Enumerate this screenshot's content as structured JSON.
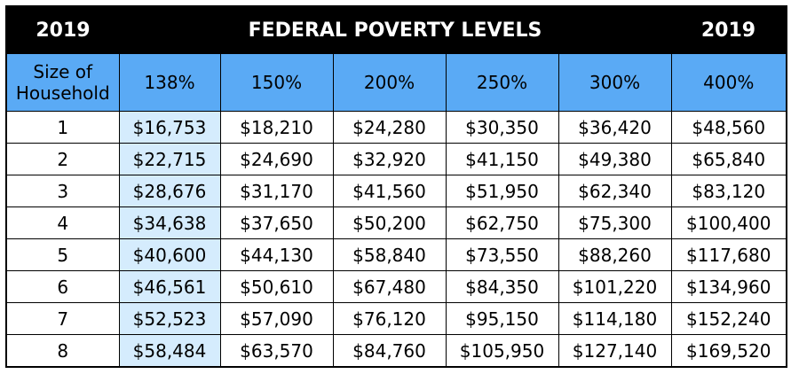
{
  "title_bar": {
    "left_year": "2019",
    "title": "FEDERAL POVERTY LEVELS",
    "right_year": "2019"
  },
  "table": {
    "headers": [
      "Size of Household",
      "138%",
      "150%",
      "200%",
      "250%",
      "300%",
      "400%"
    ],
    "rows": [
      [
        "1",
        "$16,753",
        "$18,210",
        "$24,280",
        "$30,350",
        "$36,420",
        "$48,560"
      ],
      [
        "2",
        "$22,715",
        "$24,690",
        "$32,920",
        "$41,150",
        "$49,380",
        "$65,840"
      ],
      [
        "3",
        "$28,676",
        "$31,170",
        "$41,560",
        "$51,950",
        "$62,340",
        "$83,120"
      ],
      [
        "4",
        "$34,638",
        "$37,650",
        "$50,200",
        "$62,750",
        "$75,300",
        "$100,400"
      ],
      [
        "5",
        "$40,600",
        "$44,130",
        "$58,840",
        "$73,550",
        "$88,260",
        "$117,680"
      ],
      [
        "6",
        "$46,561",
        "$50,610",
        "$67,480",
        "$84,350",
        "$101,220",
        "$134,960"
      ],
      [
        "7",
        "$52,523",
        "$57,090",
        "$76,120",
        "$95,150",
        "$114,180",
        "$152,240"
      ],
      [
        "8",
        "$58,484",
        "$63,570",
        "$84,760",
        "$105,950",
        "$127,140",
        "$169,520"
      ]
    ]
  },
  "colors": {
    "title_bar_bg": "#000000",
    "header_bg": "#5aaaf5",
    "highlight_column_bg": "#d5ecfd"
  }
}
